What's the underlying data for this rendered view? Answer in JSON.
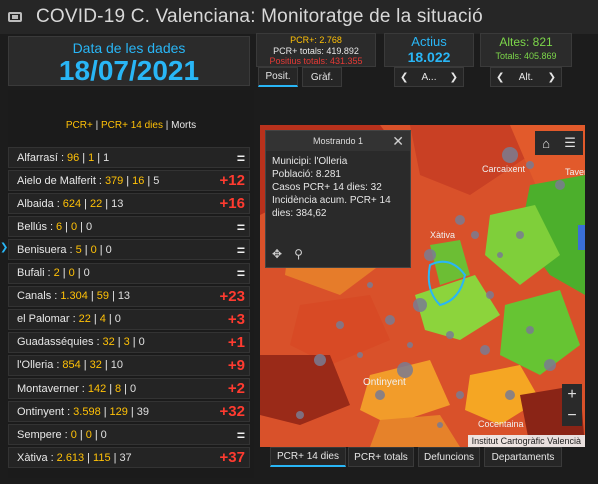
{
  "header": {
    "title": "COVID-19 C. Valenciana: Monitoratge de la situació"
  },
  "datebox": {
    "label": "Data de les dades",
    "value": "18/07/2021"
  },
  "pcr": {
    "pcr": "PCR+: 2.768",
    "totals": "PCR+ totals: 419.892",
    "positius": "Positius totals: 431.355"
  },
  "actius": {
    "label": "Actius",
    "value": "18.022",
    "nav_label": "A..."
  },
  "altes": {
    "label": "Altes: 821",
    "totals": "Totals: 405.869",
    "nav_label": "Alt."
  },
  "view_tabs": {
    "posit": "Posit.",
    "graf": "Gràf."
  },
  "legend": {
    "pcr": "PCR+",
    "pcr14": "PCR+ 14 dies",
    "morts": "Morts"
  },
  "rows": [
    {
      "name": "Alfarrasí",
      "v1": "96",
      "v2": "1",
      "v3": "1",
      "change": "="
    },
    {
      "name": "Aielo de Malferit",
      "v1": "379",
      "v2": "16",
      "v3": "5",
      "change": "+12"
    },
    {
      "name": "Albaida",
      "v1": "624",
      "v2": "22",
      "v3": "13",
      "change": "+16"
    },
    {
      "name": "Bellús",
      "v1": "6",
      "v2": "0",
      "v3": "0",
      "change": "="
    },
    {
      "name": "Benisuera",
      "v1": "5",
      "v2": "0",
      "v3": "0",
      "change": "="
    },
    {
      "name": "Bufali",
      "v1": "2",
      "v2": "0",
      "v3": "0",
      "change": "="
    },
    {
      "name": "Canals",
      "v1": "1.304",
      "v2": "59",
      "v3": "13",
      "change": "+23"
    },
    {
      "name": "el Palomar",
      "v1": "22",
      "v2": "4",
      "v3": "0",
      "change": "+3"
    },
    {
      "name": "Guadasséquies",
      "v1": "32",
      "v2": "3",
      "v3": "0",
      "change": "+1"
    },
    {
      "name": "l'Olleria",
      "v1": "854",
      "v2": "32",
      "v3": "10",
      "change": "+9"
    },
    {
      "name": "Montaverner",
      "v1": "142",
      "v2": "8",
      "v3": "0",
      "change": "+2"
    },
    {
      "name": "Ontinyent",
      "v1": "3.598",
      "v2": "129",
      "v3": "39",
      "change": "+32"
    },
    {
      "name": "Sempere",
      "v1": "0",
      "v2": "0",
      "v3": "0",
      "change": "="
    },
    {
      "name": "Xàtiva",
      "v1": "2.613",
      "v2": "115",
      "v3": "37",
      "change": "+37"
    }
  ],
  "popup": {
    "header": "Mostrando 1",
    "line1": "Municipi: l'Olleria",
    "line2": "Població: 8.281",
    "line3": "Casos PCR+ 14 dies: 32",
    "line4": "Incidència acum. PCR+ 14",
    "line5": "dies: 384,62"
  },
  "map_labels": {
    "carcaixent": "Carcaixent",
    "xativa": "Xàtiva",
    "ontinyent": "Ontinyent",
    "cocentaina": "Cocentaina",
    "taver": "Taver"
  },
  "attribution": "Institut Cartogràfic Valencià",
  "bottom_tabs": {
    "pcr14": "PCR+ 14 dies",
    "pcrtotals": "PCR+ totals",
    "defuncions": "Defuncions",
    "departaments": "Departaments"
  },
  "colors": {
    "accent": "#29b6f6",
    "yellow": "#ffc107",
    "red": "#ff3b30",
    "green": "#7cd64a"
  }
}
